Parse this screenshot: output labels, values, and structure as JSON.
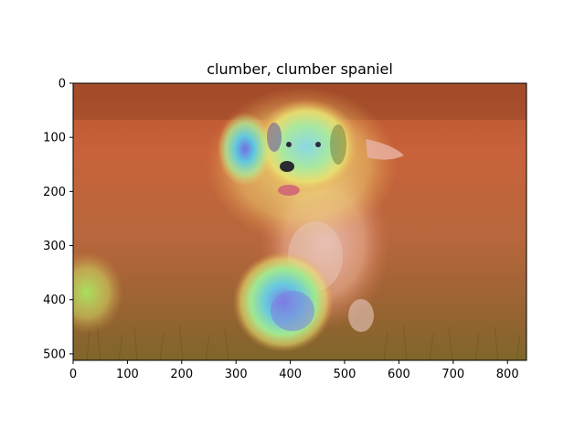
{
  "figure": {
    "title": "clumber, clumber spaniel"
  },
  "image": {
    "subject": "golden retriever puppy running on grass",
    "overlay": "heatmap"
  },
  "axes": {
    "x_ticks": [
      "0",
      "100",
      "200",
      "300",
      "400",
      "500",
      "600",
      "700",
      "800"
    ],
    "y_ticks": [
      "0",
      "100",
      "200",
      "300",
      "400",
      "500"
    ],
    "x_range": [
      0,
      835
    ],
    "y_range": [
      0,
      512
    ]
  },
  "colors": {
    "heatmap_hot": "#d9412e",
    "heatmap_warm": "#e6a23c",
    "heatmap_mid": "#e8e65a",
    "heatmap_cool": "#5fd3c8",
    "heatmap_cold": "#6b6fe0",
    "grass": "#7a5a2a"
  }
}
